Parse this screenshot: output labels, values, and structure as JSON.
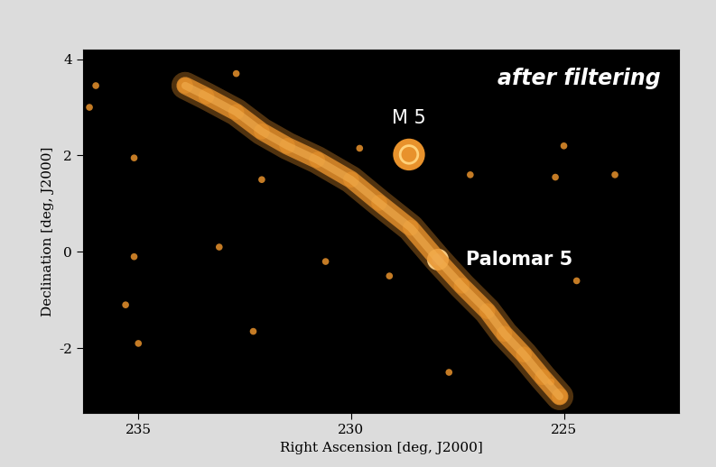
{
  "chart_data": {
    "type": "sky_map",
    "xlabel": "Right Ascension [deg, J2000]",
    "ylabel": "Declination [deg, J2000]",
    "xlim": [
      236.3,
      222.3
    ],
    "ylim": [
      -3.35,
      4.2
    ],
    "xticks": [
      235,
      230,
      225
    ],
    "yticks": [
      -2,
      0,
      2,
      4
    ],
    "annotations": [
      {
        "text": "after filtering"
      }
    ],
    "color": "#e8922c",
    "stream": {
      "x": [
        233.9,
        233.4,
        232.7,
        232.1,
        231.5,
        230.8,
        230.0,
        229.34,
        228.6,
        227.96,
        227.4,
        226.8,
        226.4,
        225.94,
        225.5,
        225.1
      ],
      "y": [
        3.45,
        3.23,
        2.9,
        2.5,
        2.2,
        1.91,
        1.5,
        1.02,
        0.5,
        -0.16,
        -0.7,
        -1.23,
        -1.7,
        -2.13,
        -2.6,
        -3.0
      ]
    },
    "clusters": [
      {
        "name": "M 5",
        "x": 228.64,
        "y": 2.02
      },
      {
        "name": "Palomar 5",
        "x": 227.96,
        "y": -0.16
      }
    ],
    "sources": {
      "x": [
        236.15,
        236.0,
        235.1,
        235.1,
        233.1,
        232.1,
        232.7,
        229.8,
        229.1,
        227.7,
        225.3,
        224.7,
        225.2,
        225.0,
        223.8,
        227.2,
        230.6,
        235.3,
        232.3,
        235.0
      ],
      "y": [
        3.0,
        3.45,
        1.95,
        -0.1,
        0.1,
        1.5,
        3.7,
        2.15,
        -0.5,
        -2.5,
        -2.7,
        -0.6,
        1.55,
        2.2,
        1.6,
        1.6,
        -0.2,
        -1.1,
        -1.65,
        -1.9
      ]
    }
  }
}
